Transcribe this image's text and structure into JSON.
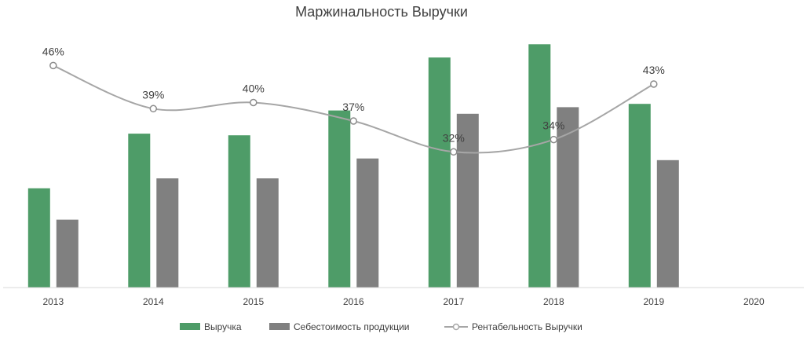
{
  "chart_data": {
    "type": "bar",
    "title": "Маржинальность Выручки",
    "categories": [
      "2013",
      "2014",
      "2015",
      "2016",
      "2017",
      "2018",
      "2019",
      "2020"
    ],
    "series": [
      {
        "name": "Выручка",
        "type": "bar",
        "color": "#4e9c68",
        "values": [
          120,
          186,
          184,
          214,
          278,
          294,
          222,
          null
        ]
      },
      {
        "name": "Себестоимость продукции",
        "type": "bar",
        "color": "#808080",
        "values": [
          82,
          132,
          132,
          156,
          210,
          218,
          154,
          null
        ]
      },
      {
        "name": "Рентабельность Выручки",
        "type": "line",
        "color": "#a6a6a6",
        "axis": "secondary",
        "smooth": true,
        "values": [
          0.46,
          0.39,
          0.4,
          0.37,
          0.32,
          0.34,
          0.43,
          null
        ],
        "labels": [
          "46%",
          "39%",
          "40%",
          "37%",
          "32%",
          "34%",
          "43%",
          null
        ]
      }
    ],
    "primary_axis_visible": false,
    "secondary_axis_visible": false,
    "gridlines": false,
    "legend_position": "bottom"
  }
}
